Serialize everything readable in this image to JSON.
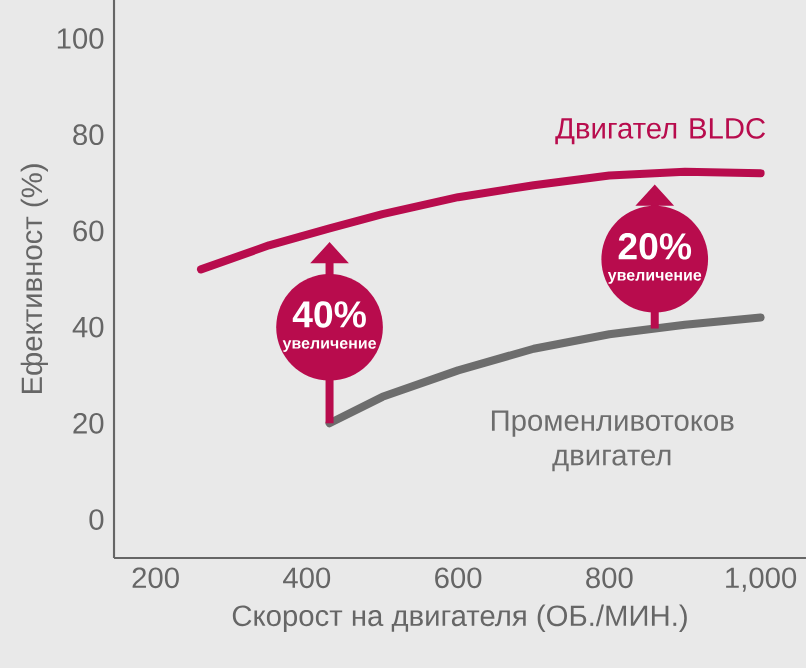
{
  "chart_data": {
    "type": "line",
    "xlabel": "Скорост на двигателя (ОБ./МИН.)",
    "ylabel": "Ефективност (%)",
    "xlim": [
      145,
      1060
    ],
    "xticks": [
      200,
      400,
      600,
      800,
      {
        "value": 1000,
        "label": "1,000"
      }
    ],
    "ylim": [
      -8,
      108
    ],
    "yticks": [
      0,
      20,
      40,
      60,
      80,
      100
    ],
    "grid": false,
    "legend": false,
    "marker": "none",
    "line_style": "solid",
    "series": [
      {
        "name": "Двигател BLDC",
        "color": "#b80c4d",
        "x": [
          260,
          350,
          430,
          500,
          600,
          700,
          800,
          900,
          1000
        ],
        "values": [
          52,
          57,
          60.5,
          63.5,
          67,
          69.5,
          71.5,
          72.3,
          72
        ]
      },
      {
        "name": "Променливотоков двигател",
        "color": "#6d6d6d",
        "x": [
          430,
          500,
          600,
          700,
          800,
          900,
          1000
        ],
        "values": [
          20,
          25.5,
          31,
          35.5,
          38.5,
          40.5,
          42
        ]
      }
    ],
    "annotations": [
      {
        "text": "40%",
        "x": 430,
        "y": 20
      },
      "увеличение",
      {
        "text": "20%",
        "x": 860,
        "y": 39.7
      },
      "увеличение"
    ]
  }
}
